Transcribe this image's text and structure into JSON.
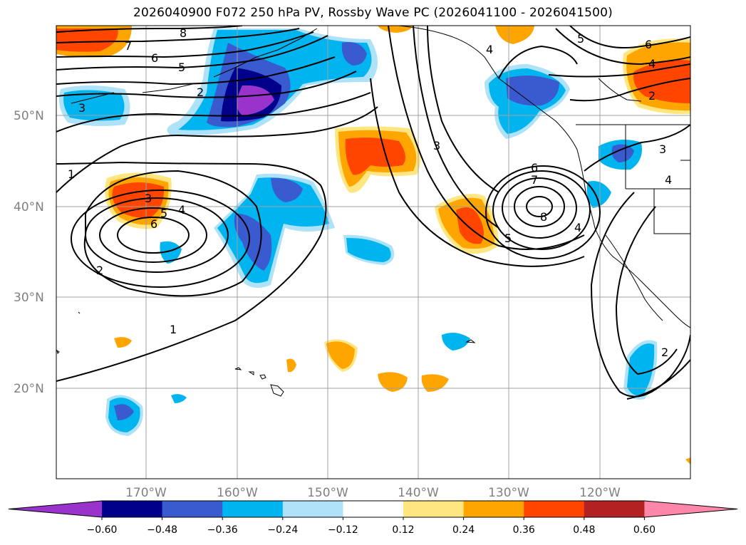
{
  "title": "2026040900 F072 250 hPa PV, Rossby Wave PC (2026041100 - 2026041500)",
  "lat_labels": [
    "50°N",
    "40°N",
    "30°N",
    "20°N"
  ],
  "lon_labels": [
    "170°W",
    "160°W",
    "150°W",
    "140°W",
    "130°W",
    "120°W"
  ],
  "colorbar": {
    "ticks": [
      "−0.60",
      "−0.48",
      "−0.36",
      "−0.24",
      "−0.12",
      "0.12",
      "0.24",
      "0.36",
      "0.48",
      "0.60"
    ],
    "colors": [
      "#9933cc",
      "#00008b",
      "#3a5bcf",
      "#00b4f0",
      "#ade2f8",
      "#ffffff",
      "#ffe680",
      "#ffa500",
      "#ff4500",
      "#b22222",
      "#ff88aa"
    ]
  },
  "contour_labels": [
    "8",
    "7",
    "6",
    "5",
    "2",
    "3",
    "1",
    "3",
    "5",
    "4",
    "6",
    "2",
    "1",
    "3",
    "6",
    "7",
    "8",
    "5",
    "4",
    "5",
    "6",
    "4",
    "2",
    "3",
    "4",
    "2",
    "4"
  ],
  "colors": {
    "grid": "#a0a0a0",
    "coast": "#000000",
    "contour": "#000000"
  }
}
